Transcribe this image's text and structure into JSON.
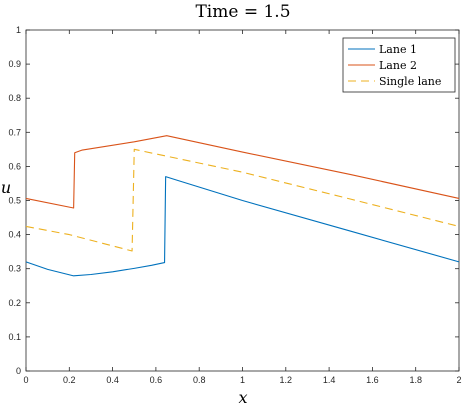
{
  "chart_data": {
    "type": "line",
    "title": "Time = 1.5",
    "xlabel": "x",
    "ylabel": "u",
    "xlim": [
      0,
      2
    ],
    "ylim": [
      0,
      1
    ],
    "xticks": [
      0,
      0.2,
      0.4,
      0.6,
      0.8,
      1,
      1.2,
      1.4,
      1.6,
      1.8,
      2
    ],
    "xtick_labels": [
      "0",
      "0.2",
      "0.4",
      "0.6",
      "0.8",
      "1",
      "1.2",
      "1.4",
      "1.6",
      "1.8",
      "2"
    ],
    "yticks": [
      0,
      0.1,
      0.2,
      0.3,
      0.4,
      0.5,
      0.6,
      0.7,
      0.8,
      0.9,
      1
    ],
    "ytick_labels": [
      "0",
      "0.1",
      "0.2",
      "0.3",
      "0.4",
      "0.5",
      "0.6",
      "0.7",
      "0.8",
      "0.9",
      "1"
    ],
    "grid": false,
    "legend_position": "top-right",
    "series": [
      {
        "name": "Lane 1",
        "color": "#0072BD",
        "dash": "solid",
        "x": [
          0,
          0.1,
          0.22,
          0.3,
          0.4,
          0.5,
          0.58,
          0.64,
          0.645,
          0.7,
          1,
          1.5,
          2
        ],
        "y": [
          0.32,
          0.298,
          0.279,
          0.283,
          0.291,
          0.301,
          0.31,
          0.318,
          0.57,
          0.559,
          0.5,
          0.41,
          0.32
        ]
      },
      {
        "name": "Lane 2",
        "color": "#D95319",
        "dash": "solid",
        "x": [
          0,
          0.22,
          0.225,
          0.26,
          0.5,
          0.65,
          1,
          1.5,
          2
        ],
        "y": [
          0.506,
          0.478,
          0.64,
          0.648,
          0.672,
          0.69,
          0.642,
          0.576,
          0.506
        ]
      },
      {
        "name": "Single lane",
        "color": "#EDB120",
        "dash": "dashed",
        "x": [
          0,
          0.2,
          0.49,
          0.5,
          1,
          1.5,
          2
        ],
        "y": [
          0.424,
          0.4,
          0.352,
          0.65,
          0.583,
          0.504,
          0.424
        ]
      }
    ]
  }
}
